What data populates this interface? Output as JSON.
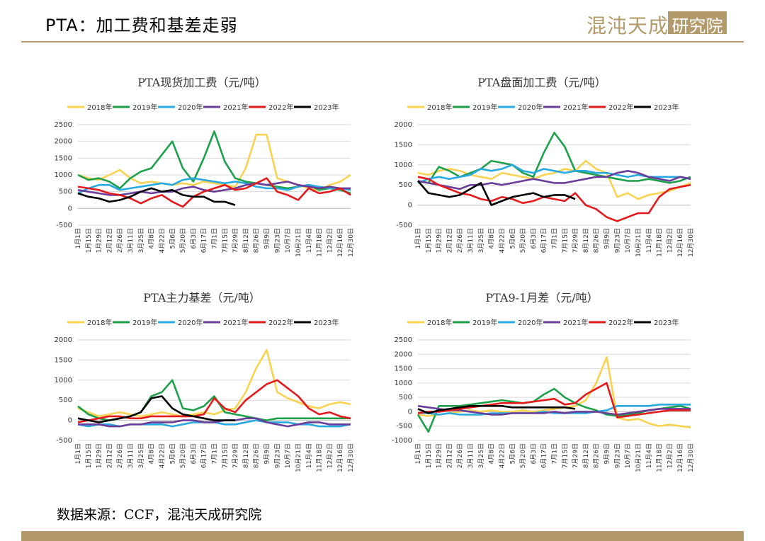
{
  "header": {
    "title": "PTA：加工费和基差走弱",
    "logo_text": "混沌天成",
    "logo_box_text": "研究院"
  },
  "source": "数据来源：CCF，混沌天成研究院",
  "colors": {
    "accent": "#b39a6b",
    "2018年": "#f9d351",
    "2019年": "#1da04a",
    "2020年": "#29a9e1",
    "2021年": "#6a3d9a",
    "2022年": "#e41a1c",
    "2023年": "#000000"
  },
  "chart_data": [
    {
      "type": "line",
      "title": "PTA现货加工费（元/吨）",
      "ylim": [
        -500,
        2500
      ],
      "yticks": [
        -500,
        0,
        500,
        1000,
        1500,
        2000,
        2500
      ],
      "legend_position": "top",
      "x_ticks": [
        "1月1日",
        "1月15日",
        "1月29日",
        "2月12日",
        "2月26日",
        "3月11日",
        "3月25日",
        "4月8日",
        "4月22日",
        "5月6日",
        "5月20日",
        "6月3日",
        "6月17日",
        "7月1日",
        "7月15日",
        "7月29日",
        "8月12日",
        "8月26日",
        "9月9日",
        "9月23日",
        "10月7日",
        "10月21日",
        "11月4日",
        "11月18日",
        "12月2日",
        "12月16日",
        "12月30日"
      ],
      "series": [
        {
          "name": "2018年",
          "values": [
            1000,
            900,
            850,
            1000,
            1150,
            900,
            750,
            800,
            750,
            700,
            750,
            700,
            800,
            750,
            700,
            650,
            1200,
            2200,
            2200,
            900,
            800,
            700,
            600,
            550,
            700,
            800,
            1000
          ]
        },
        {
          "name": "2019年",
          "values": [
            1000,
            850,
            900,
            800,
            600,
            900,
            1100,
            1200,
            1600,
            2000,
            1200,
            800,
            1500,
            2300,
            1400,
            900,
            800,
            750,
            700,
            650,
            600,
            650,
            700,
            550,
            600,
            550,
            450
          ]
        },
        {
          "name": "2020年",
          "values": [
            450,
            600,
            700,
            700,
            550,
            600,
            650,
            700,
            750,
            700,
            850,
            900,
            850,
            800,
            750,
            800,
            750,
            650,
            600,
            600,
            550,
            650,
            700,
            650,
            600,
            600,
            550
          ]
        },
        {
          "name": "2021年",
          "values": [
            550,
            500,
            450,
            400,
            400,
            450,
            500,
            450,
            500,
            500,
            600,
            650,
            550,
            500,
            550,
            600,
            700,
            750,
            700,
            750,
            800,
            700,
            650,
            600,
            650,
            600,
            600
          ]
        },
        {
          "name": "2022年",
          "values": [
            650,
            600,
            550,
            450,
            400,
            300,
            150,
            300,
            400,
            200,
            50,
            350,
            500,
            600,
            700,
            550,
            600,
            750,
            900,
            500,
            400,
            250,
            600,
            450,
            500,
            600,
            400
          ]
        },
        {
          "name": "2023年",
          "values": [
            450,
            350,
            300,
            200,
            250,
            350,
            500,
            600,
            500,
            550,
            400,
            350,
            350,
            200,
            200,
            100,
            null,
            null,
            null,
            null,
            null,
            null,
            null,
            null,
            null,
            null,
            null
          ]
        }
      ]
    },
    {
      "type": "line",
      "title": "PTA盘面加工费（元/吨）",
      "ylim": [
        -500,
        2000
      ],
      "yticks": [
        -500,
        0,
        500,
        1000,
        1500,
        2000
      ],
      "legend_position": "top",
      "x_ticks": [
        "1月1日",
        "1月15日",
        "1月29日",
        "2月12日",
        "2月26日",
        "3月11日",
        "3月25日",
        "4月8日",
        "4月22日",
        "5月6日",
        "5月20日",
        "6月3日",
        "6月17日",
        "7月1日",
        "7月15日",
        "7月29日",
        "8月12日",
        "8月26日",
        "9月9日",
        "9月23日",
        "10月7日",
        "10月21日",
        "11月4日",
        "11月18日",
        "12月2日",
        "12月16日",
        "12月30日"
      ],
      "series": [
        {
          "name": "2018年",
          "values": [
            800,
            750,
            850,
            900,
            850,
            750,
            700,
            650,
            800,
            750,
            700,
            650,
            750,
            800,
            900,
            850,
            1100,
            900,
            800,
            200,
            300,
            150,
            250,
            300,
            350,
            450,
            550
          ]
        },
        {
          "name": "2019年",
          "values": [
            600,
            550,
            950,
            850,
            700,
            800,
            900,
            1100,
            1050,
            1000,
            800,
            700,
            1300,
            1800,
            1450,
            850,
            800,
            750,
            700,
            650,
            600,
            600,
            650,
            600,
            550,
            600,
            700
          ]
        },
        {
          "name": "2020年",
          "values": [
            550,
            650,
            700,
            650,
            700,
            750,
            900,
            850,
            900,
            1000,
            850,
            800,
            900,
            850,
            800,
            850,
            850,
            800,
            800,
            750,
            700,
            750,
            700,
            700,
            700,
            700,
            650
          ]
        },
        {
          "name": "2021年",
          "values": [
            600,
            550,
            500,
            450,
            400,
            500,
            500,
            550,
            500,
            550,
            600,
            650,
            600,
            550,
            550,
            600,
            650,
            700,
            700,
            800,
            850,
            800,
            700,
            650,
            600,
            700,
            650
          ]
        },
        {
          "name": "2022年",
          "values": [
            700,
            650,
            500,
            400,
            300,
            250,
            150,
            100,
            200,
            150,
            50,
            100,
            200,
            150,
            100,
            300,
            0,
            -100,
            -300,
            -400,
            -300,
            -200,
            -200,
            200,
            400,
            450,
            500
          ]
        },
        {
          "name": "2023年",
          "values": [
            600,
            300,
            250,
            200,
            250,
            400,
            550,
            0,
            100,
            200,
            250,
            300,
            200,
            250,
            250,
            150,
            null,
            null,
            null,
            null,
            null,
            null,
            null,
            null,
            null,
            null,
            null
          ]
        }
      ]
    },
    {
      "type": "line",
      "title": "PTA主力基差（元/吨）",
      "ylim": [
        -500,
        2000
      ],
      "yticks": [
        -500,
        0,
        500,
        1000,
        1500,
        2000
      ],
      "legend_position": "top",
      "x_ticks": [
        "1月1日",
        "1月15日",
        "1月29日",
        "2月12日",
        "2月26日",
        "3月11日",
        "3月25日",
        "4月8日",
        "4月22日",
        "5月6日",
        "5月20日",
        "6月3日",
        "6月17日",
        "7月1日",
        "7月15日",
        "7月29日",
        "8月12日",
        "8月26日",
        "9月9日",
        "9月23日",
        "10月7日",
        "10月21日",
        "11月4日",
        "11月18日",
        "12月2日",
        "12月16日",
        "12月30日"
      ],
      "series": [
        {
          "name": "2018年",
          "values": [
            300,
            200,
            100,
            150,
            200,
            150,
            100,
            150,
            200,
            150,
            100,
            150,
            200,
            150,
            250,
            300,
            700,
            1300,
            1750,
            700,
            550,
            450,
            350,
            300,
            400,
            450,
            400
          ]
        },
        {
          "name": "2019年",
          "values": [
            350,
            150,
            50,
            0,
            50,
            100,
            200,
            600,
            700,
            1000,
            300,
            250,
            350,
            600,
            200,
            150,
            100,
            50,
            0,
            50,
            50,
            50,
            50,
            50,
            50,
            50,
            50
          ]
        },
        {
          "name": "2020年",
          "values": [
            -100,
            -150,
            -100,
            -100,
            -150,
            -100,
            -100,
            -100,
            -100,
            -150,
            -100,
            -50,
            -50,
            -50,
            -100,
            -100,
            -50,
            0,
            -50,
            -50,
            -50,
            -100,
            -100,
            -150,
            -150,
            -150,
            -100
          ]
        },
        {
          "name": "2021年",
          "values": [
            -100,
            -100,
            -100,
            -150,
            -150,
            -100,
            -100,
            -50,
            -50,
            -50,
            0,
            0,
            -50,
            -50,
            0,
            0,
            50,
            50,
            -50,
            -100,
            -150,
            -100,
            -50,
            -50,
            -100,
            -100,
            -100
          ]
        },
        {
          "name": "2022年",
          "values": [
            -50,
            0,
            50,
            100,
            100,
            50,
            50,
            100,
            100,
            100,
            100,
            100,
            150,
            550,
            300,
            200,
            500,
            700,
            900,
            1000,
            800,
            600,
            300,
            150,
            200,
            100,
            50
          ]
        },
        {
          "name": "2023年",
          "values": [
            50,
            0,
            -50,
            0,
            50,
            100,
            200,
            550,
            600,
            300,
            150,
            100,
            50,
            0,
            0,
            0,
            null,
            null,
            null,
            null,
            null,
            null,
            null,
            null,
            null,
            null,
            null
          ]
        }
      ]
    },
    {
      "type": "line",
      "title": "PTA9-1月差（元/吨）",
      "ylim": [
        -1000,
        2500
      ],
      "yticks": [
        -1000,
        -500,
        0,
        500,
        1000,
        1500,
        2000,
        2500
      ],
      "legend_position": "top",
      "x_ticks": [
        "1月1日",
        "1月15日",
        "1月29日",
        "2月12日",
        "2月26日",
        "3月11日",
        "3月25日",
        "4月8日",
        "4月22日",
        "5月6日",
        "5月20日",
        "6月3日",
        "6月17日",
        "7月1日",
        "7月15日",
        "7月29日",
        "8月12日",
        "8月26日",
        "9月9日",
        "9月23日",
        "10月7日",
        "10月21日",
        "11月4日",
        "11月18日",
        "12月2日",
        "12月16日",
        "12月30日"
      ],
      "series": [
        {
          "name": "2018年",
          "values": [
            -100,
            -150,
            -100,
            -50,
            0,
            50,
            0,
            50,
            0,
            0,
            50,
            0,
            50,
            100,
            150,
            200,
            400,
            1000,
            1900,
            -200,
            -300,
            -250,
            -400,
            -500,
            -450,
            -500,
            -550
          ]
        },
        {
          "name": "2019年",
          "values": [
            -100,
            -700,
            200,
            200,
            200,
            250,
            300,
            350,
            400,
            350,
            300,
            350,
            600,
            800,
            500,
            300,
            150,
            50,
            -100,
            -150,
            -100,
            -50,
            50,
            100,
            150,
            200,
            100
          ]
        },
        {
          "name": "2020年",
          "values": [
            -50,
            -50,
            -100,
            -50,
            -100,
            -100,
            -100,
            -50,
            -50,
            -50,
            -50,
            -50,
            0,
            -50,
            -50,
            -50,
            -50,
            0,
            50,
            200,
            200,
            200,
            200,
            250,
            250,
            250,
            250
          ]
        },
        {
          "name": "2021年",
          "values": [
            200,
            150,
            100,
            50,
            50,
            0,
            -50,
            -100,
            -100,
            -50,
            -50,
            -50,
            -50,
            0,
            -50,
            0,
            0,
            0,
            -50,
            -100,
            -50,
            0,
            50,
            100,
            100,
            100,
            100
          ]
        },
        {
          "name": "2022年",
          "values": [
            -50,
            0,
            0,
            50,
            100,
            150,
            200,
            250,
            300,
            300,
            300,
            350,
            400,
            450,
            250,
            300,
            600,
            800,
            1000,
            -200,
            -150,
            -100,
            -50,
            0,
            50,
            50,
            50
          ]
        },
        {
          "name": "2023年",
          "values": [
            100,
            -50,
            50,
            100,
            150,
            200,
            200,
            200,
            200,
            150,
            150,
            150,
            150,
            150,
            150,
            100,
            null,
            null,
            null,
            null,
            null,
            null,
            null,
            null,
            null,
            null,
            null
          ]
        }
      ]
    }
  ]
}
